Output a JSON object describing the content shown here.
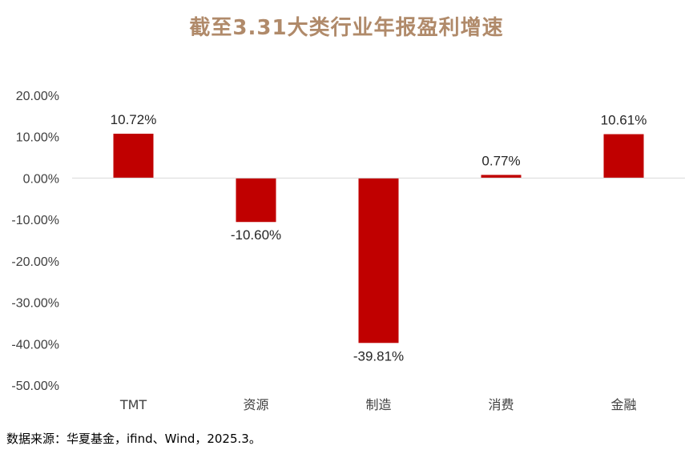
{
  "title": "截至3.31大类行业年报盈利增速",
  "source": "数据来源：华夏基金，ifind、Wind，2025.3。",
  "colors": {
    "bar": "#C00000",
    "title": "#B08A6A",
    "axis_text": "#404040",
    "data_label": "#262626",
    "zero_line": "#D9D9D9"
  },
  "chart_data": {
    "type": "bar",
    "title": "截至3.31大类行业年报盈利增速",
    "categories": [
      "TMT",
      "资源",
      "制造",
      "消费",
      "金融"
    ],
    "values": [
      10.72,
      -10.6,
      -39.81,
      0.77,
      10.61
    ],
    "data_labels": [
      "10.72%",
      "-10.60%",
      "-39.81%",
      "0.77%",
      "10.61%"
    ],
    "y_ticks": [
      20,
      10,
      0,
      -10,
      -20,
      -30,
      -40,
      -50
    ],
    "y_tick_labels": [
      "20.00%",
      "10.00%",
      "0.00%",
      "-10.00%",
      "-20.00%",
      "-30.00%",
      "-40.00%",
      "-50.00%"
    ],
    "ylim": [
      -50,
      20
    ],
    "xlabel": "",
    "ylabel": "",
    "grid": false,
    "legend": "none"
  }
}
